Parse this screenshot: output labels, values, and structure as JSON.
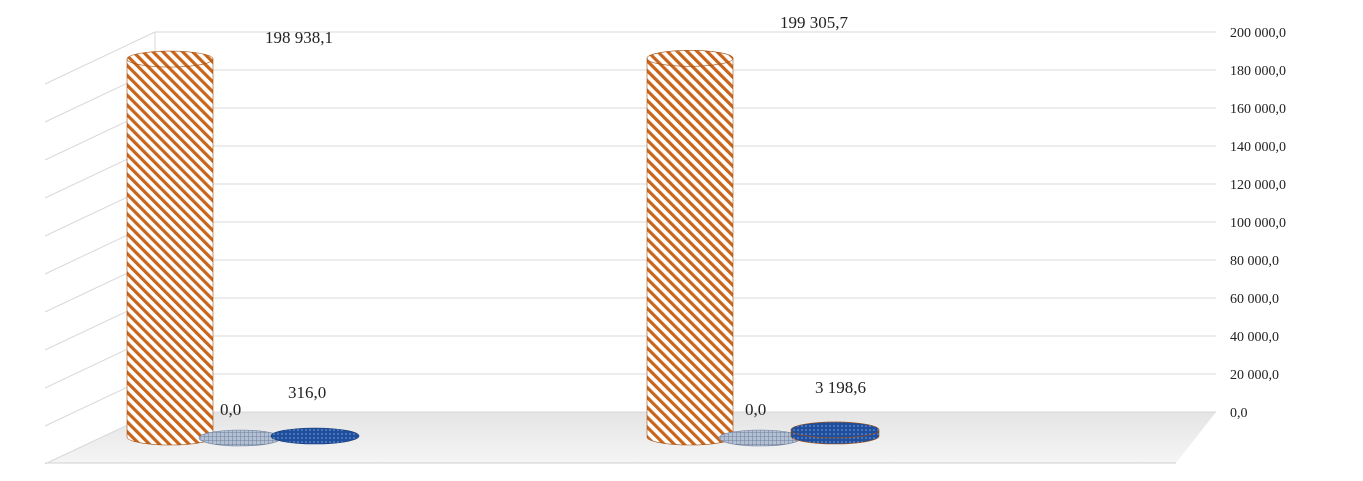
{
  "chart_data": {
    "type": "bar",
    "style": "3d-cylinder",
    "categories": [
      "",
      ""
    ],
    "series": [
      {
        "values": [
          198938.1,
          199305.7
        ],
        "color": "#c8651b",
        "pattern": "diagonal-stripes"
      },
      {
        "values": [
          0.0,
          0.0
        ],
        "color": "#8a9bb8",
        "pattern": "grid"
      },
      {
        "values": [
          316.0,
          3198.6
        ],
        "color": "#1f4e9c",
        "pattern": "dots"
      }
    ],
    "data_labels": [
      [
        "198 938,1",
        "199 305,7"
      ],
      [
        "0,0",
        "0,0"
      ],
      [
        "316,0",
        "3 198,6"
      ]
    ],
    "y_ticks": [
      "0,0",
      "20 000,0",
      "40 000,0",
      "60 000,0",
      "80 000,0",
      "100 000,0",
      "120 000,0",
      "140 000,0",
      "160 000,0",
      "180 000,0",
      "200 000,0"
    ],
    "ylim": [
      0,
      200000
    ],
    "y_axis_position": "right",
    "grid": true,
    "legend": "none"
  }
}
